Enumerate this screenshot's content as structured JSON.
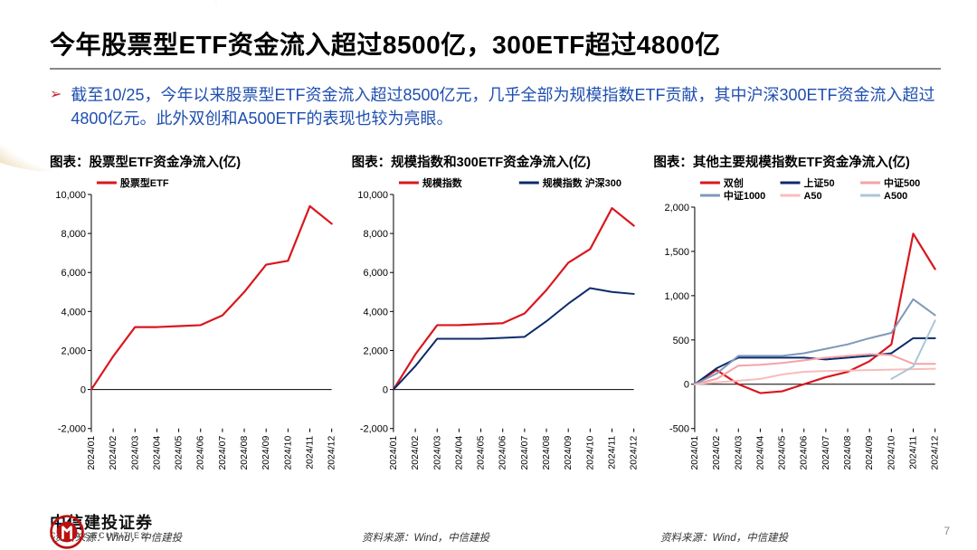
{
  "title": "今年股票型ETF资金流入超过8500亿，300ETF超过4800亿",
  "bullet": "截至10/25，今年以来股票型ETF资金流入超过8500亿元，几乎全部为规模指数ETF贡献，其中沪深300ETF资金流入超过4800亿元。此外双创和A500ETF的表现也较为亮眼。",
  "page_number": "7",
  "brand_cn": "中信建投证券",
  "brand_en": "CHINA SECURITIES",
  "sources": [
    "资料来源：Wind，中信建投",
    "资料来源：Wind，中信建投",
    "资料来源：Wind，中信建投"
  ],
  "colors": {
    "red": "#d9171e",
    "navy": "#0b2b6b",
    "pink": "#f5a3a6",
    "steel": "#7e99b8",
    "lightblue": "#a9c7d8",
    "salmon": "#f7bdbd"
  },
  "x_labels": [
    "2024/01",
    "2024/02",
    "2024/03",
    "2024/04",
    "2024/05",
    "2024/06",
    "2024/07",
    "2024/08",
    "2024/09",
    "2024/10",
    "2024/11",
    "2024/12"
  ],
  "chart1": {
    "title": "图表：股票型ETF资金净流入(亿)",
    "type": "line",
    "ylim": [
      -2000,
      10000
    ],
    "ytick_step": 2000,
    "series": [
      {
        "name": "股票型ETF",
        "color": "#d9171e",
        "width": 2.2,
        "values": [
          0,
          1700,
          3200,
          3200,
          3250,
          3300,
          3800,
          5000,
          6400,
          6600,
          9400,
          8500
        ]
      }
    ]
  },
  "chart2": {
    "title": "图表：规模指数和300ETF资金净流入(亿)",
    "type": "line",
    "ylim": [
      -2000,
      10000
    ],
    "ytick_step": 2000,
    "series": [
      {
        "name": "规模指数",
        "color": "#d9171e",
        "width": 2.2,
        "values": [
          0,
          1800,
          3300,
          3300,
          3350,
          3400,
          3900,
          5100,
          6500,
          7200,
          9300,
          8400
        ]
      },
      {
        "name": "规模指数 沪深300",
        "color": "#0b2b6b",
        "width": 2,
        "values": [
          0,
          1200,
          2600,
          2600,
          2600,
          2650,
          2700,
          3500,
          4400,
          5200,
          5000,
          4900
        ]
      }
    ]
  },
  "chart3": {
    "title": "图表：其他主要规模指数ETF资金净流入(亿)",
    "type": "line",
    "ylim": [
      -500,
      2000
    ],
    "ytick_step": 500,
    "series": [
      {
        "name": "双创",
        "color": "#d9171e",
        "width": 2.2,
        "values": [
          0,
          160,
          0,
          -100,
          -80,
          0,
          80,
          140,
          260,
          450,
          1700,
          1300
        ],
        "break_after": 10
      },
      {
        "name": "上证50",
        "color": "#0b2b6b",
        "width": 2,
        "values": [
          0,
          180,
          300,
          300,
          300,
          300,
          280,
          300,
          320,
          350,
          520,
          520
        ]
      },
      {
        "name": "中证500",
        "color": "#f5a3a6",
        "width": 2,
        "values": [
          0,
          60,
          210,
          220,
          240,
          270,
          300,
          320,
          340,
          330,
          230,
          230
        ]
      },
      {
        "name": "中证1000",
        "color": "#7e99b8",
        "width": 2,
        "values": [
          0,
          120,
          320,
          320,
          320,
          350,
          400,
          450,
          520,
          580,
          960,
          780
        ]
      },
      {
        "name": "A50",
        "color": "#f7bdbd",
        "width": 2,
        "values": [
          0,
          20,
          40,
          60,
          110,
          140,
          150,
          155,
          160,
          165,
          170,
          175
        ]
      },
      {
        "name": "A500",
        "color": "#a9c7d8",
        "width": 2,
        "values": [
          null,
          null,
          null,
          null,
          null,
          null,
          null,
          null,
          null,
          60,
          200,
          720
        ]
      }
    ]
  }
}
